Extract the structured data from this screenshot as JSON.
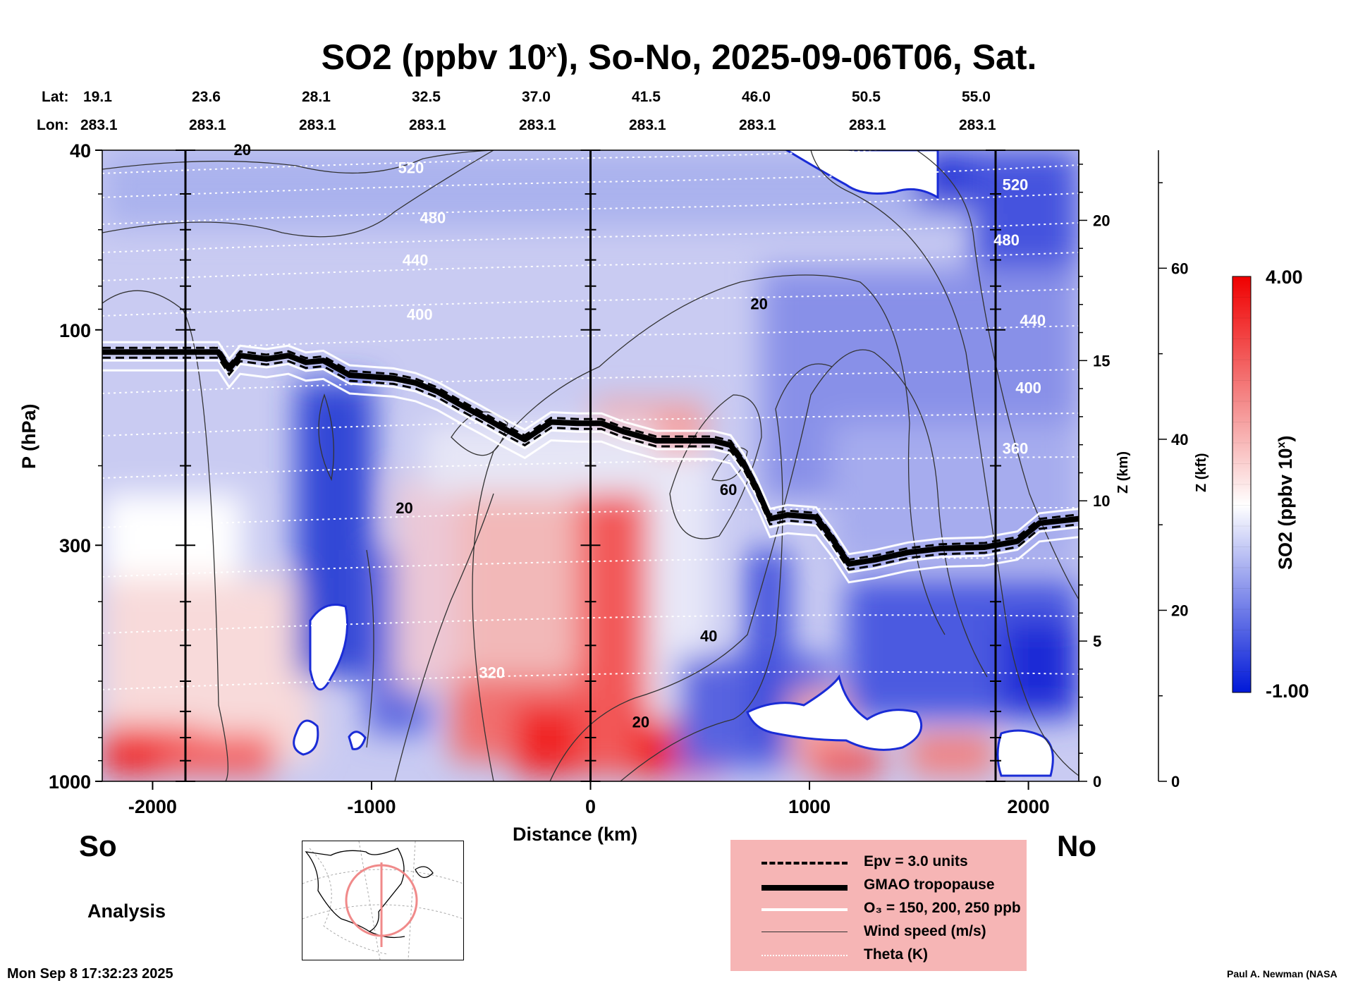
{
  "title": {
    "prefix": "SO2 (ppbv 10",
    "sup": "x",
    "suffix": "), So-No, 2025-09-06T06, Sat."
  },
  "header": {
    "lat_label": "Lat:",
    "lon_label": "Lon:",
    "lats": [
      "19.1",
      "23.6",
      "28.1",
      "32.5",
      "37.0",
      "41.5",
      "46.0",
      "50.5",
      "55.0"
    ],
    "lons": [
      "283.1",
      "283.1",
      "283.1",
      "283.1",
      "283.1",
      "283.1",
      "283.1",
      "283.1",
      "283.1"
    ]
  },
  "end_labels": {
    "south": "So",
    "north": "No"
  },
  "analysis_label": "Analysis",
  "timestamp": "Mon Sep  8 17:32:23 2025",
  "credit": "Paul A. Newman (NASA",
  "legend": {
    "items": [
      {
        "label": "Epv = 3.0 units",
        "style": "dashed-black"
      },
      {
        "label": "GMAO tropopause",
        "style": "thick-black"
      },
      {
        "label": "O₃ = 150, 200, 250 ppb",
        "style": "white"
      },
      {
        "label": "Wind speed (m/s)",
        "style": "thin-black"
      },
      {
        "label": "Theta (K)",
        "style": "dotted-white"
      }
    ]
  },
  "colorbar": {
    "label_prefix": "SO2 (ppbv 10",
    "label_sup": "x",
    "label_suffix": ")",
    "max_label": "4.00",
    "min_label": "-1.00",
    "colors": [
      "#0018d8",
      "#ffffff",
      "#f00000"
    ]
  },
  "chart_data": {
    "type": "heatmap",
    "title": "SO2 (ppbv 10^x), So-No, 2025-09-06T06, Sat.",
    "xlabel": "Distance (km)",
    "ylabel": "P (hPa)",
    "xlim": [
      -2230,
      2230
    ],
    "ylim_hpa": [
      1000,
      40
    ],
    "x_ticks": [
      -2000,
      -1000,
      0,
      1000,
      2000
    ],
    "x_tick_labels": [
      "-2000",
      "-1000",
      "0",
      "1000",
      "2000"
    ],
    "p_ticks": [
      40,
      100,
      300,
      1000
    ],
    "p_tick_labels": [
      "40",
      "100",
      "300",
      "1000"
    ],
    "z_km_ticks": [
      0,
      5,
      10,
      15,
      20
    ],
    "z_km_tick_labels": [
      "0",
      "5",
      "10",
      "15",
      "20"
    ],
    "z_km_label": "Z (km)",
    "z_kft_ticks": [
      0,
      20,
      40,
      60
    ],
    "z_kft_tick_labels": [
      "0",
      "20",
      "40",
      "60"
    ],
    "z_kft_label": "Z (kft)",
    "z_km_range": [
      0,
      22.5
    ],
    "z_kft_range": [
      0,
      73.8
    ],
    "vertical_markers_km": [
      -1850,
      0,
      1850
    ],
    "colorscale_range": [
      -1.0,
      4.0
    ],
    "theta_labels": [
      {
        "label": "520",
        "x_km": -820,
        "p": 45
      },
      {
        "label": "480",
        "x_km": -720,
        "p": 58
      },
      {
        "label": "440",
        "x_km": -800,
        "p": 72
      },
      {
        "label": "400",
        "x_km": -780,
        "p": 95
      },
      {
        "label": "320",
        "x_km": -450,
        "p": 590
      },
      {
        "label": "520",
        "x_km": 1940,
        "p": 49
      },
      {
        "label": "480",
        "x_km": 1900,
        "p": 65
      },
      {
        "label": "440",
        "x_km": 2020,
        "p": 98
      },
      {
        "label": "400",
        "x_km": 2000,
        "p": 138
      },
      {
        "label": "360",
        "x_km": 1940,
        "p": 188
      }
    ],
    "wind_labels": [
      {
        "label": "20",
        "x_km": -1590,
        "p": 41
      },
      {
        "label": "20",
        "x_km": 770,
        "p": 90
      },
      {
        "label": "20",
        "x_km": -850,
        "p": 255
      },
      {
        "label": "60",
        "x_km": 630,
        "p": 232
      },
      {
        "label": "40",
        "x_km": 540,
        "p": 490
      },
      {
        "label": "20",
        "x_km": 230,
        "p": 760
      }
    ],
    "tropopause_hpa": [
      {
        "x": -2230,
        "p": 112
      },
      {
        "x": -1960,
        "p": 112
      },
      {
        "x": -1700,
        "p": 112
      },
      {
        "x": -1650,
        "p": 122
      },
      {
        "x": -1600,
        "p": 114
      },
      {
        "x": -1480,
        "p": 116
      },
      {
        "x": -1380,
        "p": 114
      },
      {
        "x": -1300,
        "p": 118
      },
      {
        "x": -1220,
        "p": 117
      },
      {
        "x": -1100,
        "p": 126
      },
      {
        "x": -900,
        "p": 128
      },
      {
        "x": -800,
        "p": 131
      },
      {
        "x": -700,
        "p": 137
      },
      {
        "x": -600,
        "p": 146
      },
      {
        "x": -500,
        "p": 155
      },
      {
        "x": -400,
        "p": 165
      },
      {
        "x": -300,
        "p": 175
      },
      {
        "x": -180,
        "p": 160
      },
      {
        "x": -60,
        "p": 161
      },
      {
        "x": 50,
        "p": 161
      },
      {
        "x": 150,
        "p": 168
      },
      {
        "x": 300,
        "p": 176
      },
      {
        "x": 400,
        "p": 176
      },
      {
        "x": 560,
        "p": 176
      },
      {
        "x": 640,
        "p": 180
      },
      {
        "x": 700,
        "p": 198
      },
      {
        "x": 760,
        "p": 225
      },
      {
        "x": 820,
        "p": 262
      },
      {
        "x": 900,
        "p": 257
      },
      {
        "x": 1030,
        "p": 260
      },
      {
        "x": 1100,
        "p": 288
      },
      {
        "x": 1180,
        "p": 330
      },
      {
        "x": 1300,
        "p": 323
      },
      {
        "x": 1450,
        "p": 311
      },
      {
        "x": 1600,
        "p": 305
      },
      {
        "x": 1800,
        "p": 303
      },
      {
        "x": 1950,
        "p": 294
      },
      {
        "x": 2050,
        "p": 268
      },
      {
        "x": 2230,
        "p": 262
      }
    ]
  }
}
